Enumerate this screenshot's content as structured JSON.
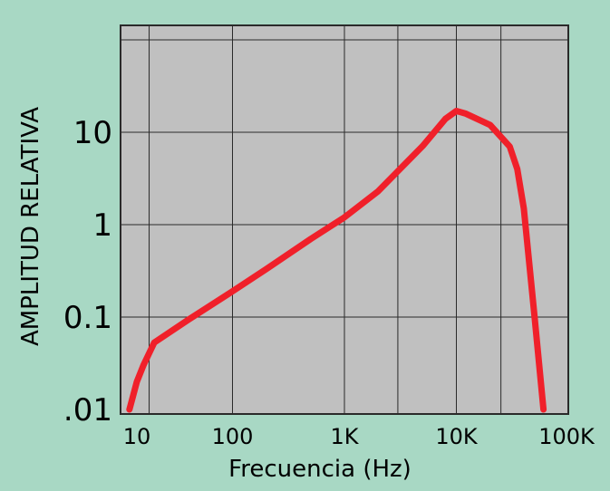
{
  "chart_data": {
    "type": "line",
    "title": "",
    "xlabel": "Frecuencia (Hz)",
    "ylabel": "AMPLITUD RELATIVA",
    "x_scale": "log",
    "y_scale": "log",
    "xlim": [
      10,
      100000
    ],
    "ylim": [
      0.01,
      200
    ],
    "x_tick_values": [
      10,
      100,
      1000,
      10000,
      100000
    ],
    "x_tick_labels": [
      "10",
      "100",
      "1K",
      "10K",
      "100K"
    ],
    "y_tick_values": [
      0.01,
      0.1,
      1,
      10
    ],
    "y_tick_labels": [
      ".01",
      "0.1",
      "1",
      "10"
    ],
    "grid": true,
    "colors": {
      "background": "#a8d8c4",
      "plot_area": "#c0c0c0",
      "grid": "#2a2a2a",
      "line": "#f0202a"
    },
    "series": [
      {
        "x": [
          12,
          14,
          16,
          20,
          40,
          100,
          200,
          500,
          1000,
          2000,
          5000,
          8000,
          10000,
          12000,
          20000,
          30000,
          35000,
          40000,
          50000,
          60000
        ],
        "y": [
          0.01,
          0.02,
          0.03,
          0.053,
          0.093,
          0.19,
          0.33,
          0.7,
          1.2,
          2.3,
          7.1,
          14,
          17,
          16,
          12,
          7,
          4,
          1.5,
          0.1,
          0.01
        ]
      }
    ]
  }
}
